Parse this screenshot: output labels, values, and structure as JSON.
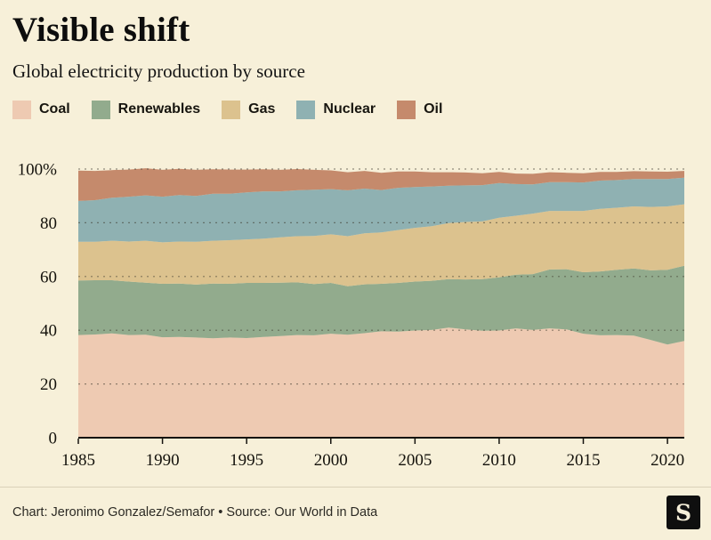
{
  "page": {
    "title": "Visible shift",
    "subtitle": "Global electricity production by source",
    "footer": "Chart: Jeronimo Gonzalez/Semafor • Source: Our World in Data",
    "logo_letter": "S"
  },
  "colors": {
    "background": "#f7f0d9",
    "coal": "#eecab2",
    "renewables": "#92ab8d",
    "gas": "#dcc28e",
    "nuclear": "#8fb1b2",
    "oil": "#c58a6c",
    "axis": "#15130e",
    "grid": "#3d382c"
  },
  "chart_data": {
    "type": "area",
    "stacked": true,
    "unit": "%",
    "title": "Visible shift",
    "subtitle": "Global electricity production by source",
    "grid": "dashed horizontal",
    "legend_position": "top",
    "ylim": [
      0,
      100
    ],
    "x": [
      1985,
      1986,
      1987,
      1988,
      1989,
      1990,
      1991,
      1992,
      1993,
      1994,
      1995,
      1996,
      1997,
      1998,
      1999,
      2000,
      2001,
      2002,
      2003,
      2004,
      2005,
      2006,
      2007,
      2008,
      2009,
      2010,
      2011,
      2012,
      2013,
      2014,
      2015,
      2016,
      2017,
      2018,
      2019,
      2020,
      2021
    ],
    "x_ticks": [
      1985,
      1990,
      1995,
      2000,
      2005,
      2010,
      2015,
      2020
    ],
    "y_ticks": [
      {
        "value": 0,
        "label": "0"
      },
      {
        "value": 20,
        "label": "20"
      },
      {
        "value": 40,
        "label": "40"
      },
      {
        "value": 60,
        "label": "60"
      },
      {
        "value": 80,
        "label": "80"
      },
      {
        "value": 100,
        "label": "100%"
      }
    ],
    "series": [
      {
        "name": "Coal",
        "color": "#eecab2",
        "values": [
          38.2,
          38.4,
          38.8,
          38.2,
          38.3,
          37.4,
          37.5,
          37.3,
          37.0,
          37.3,
          37.1,
          37.5,
          37.8,
          38.2,
          38.1,
          38.7,
          38.3,
          38.9,
          39.6,
          39.5,
          39.9,
          40.1,
          41.0,
          40.3,
          39.8,
          39.9,
          40.7,
          40.1,
          40.7,
          40.3,
          38.7,
          38.1,
          38.2,
          38.0,
          36.4,
          34.7,
          36.0
        ]
      },
      {
        "name": "Renewables",
        "color": "#92ab8d",
        "values": [
          20.3,
          20.2,
          19.8,
          19.9,
          19.4,
          19.9,
          19.9,
          19.7,
          20.4,
          20.0,
          20.5,
          20.1,
          19.9,
          19.6,
          19.1,
          18.9,
          18.1,
          18.2,
          17.7,
          18.1,
          18.2,
          18.3,
          18.0,
          18.6,
          19.2,
          19.8,
          20.0,
          20.8,
          21.9,
          22.4,
          22.9,
          23.8,
          24.3,
          25.0,
          25.9,
          27.8,
          28.0
        ]
      },
      {
        "name": "Gas",
        "color": "#dcc28e",
        "values": [
          14.4,
          14.3,
          14.7,
          14.9,
          15.6,
          15.4,
          15.6,
          15.9,
          15.9,
          16.2,
          16.2,
          16.5,
          16.9,
          17.2,
          17.9,
          18.1,
          18.6,
          19.0,
          19.1,
          19.7,
          20.0,
          20.3,
          20.9,
          21.4,
          21.5,
          22.2,
          21.9,
          22.5,
          21.8,
          21.7,
          22.8,
          23.3,
          23.1,
          23.1,
          23.6,
          23.6,
          22.9
        ]
      },
      {
        "name": "Nuclear",
        "color": "#8fb1b2",
        "values": [
          15.2,
          15.5,
          16.0,
          16.7,
          16.9,
          17.0,
          17.3,
          17.1,
          17.5,
          17.3,
          17.5,
          17.6,
          17.1,
          17.1,
          17.2,
          16.8,
          17.1,
          16.6,
          15.8,
          15.7,
          15.2,
          14.8,
          13.9,
          13.6,
          13.5,
          12.9,
          11.8,
          10.9,
          10.7,
          10.7,
          10.6,
          10.5,
          10.3,
          10.2,
          10.4,
          10.2,
          9.9
        ]
      },
      {
        "name": "Oil",
        "color": "#c58a6c",
        "values": [
          11.3,
          10.9,
          10.3,
          10.1,
          10.1,
          10.0,
          9.8,
          9.7,
          9.1,
          9.0,
          8.5,
          8.2,
          8.0,
          7.9,
          7.4,
          7.0,
          6.7,
          6.6,
          6.4,
          6.1,
          5.8,
          5.3,
          5.0,
          4.8,
          4.4,
          4.1,
          3.9,
          3.9,
          3.7,
          3.5,
          3.4,
          3.2,
          3.0,
          2.9,
          2.8,
          2.7,
          2.5
        ]
      }
    ]
  }
}
